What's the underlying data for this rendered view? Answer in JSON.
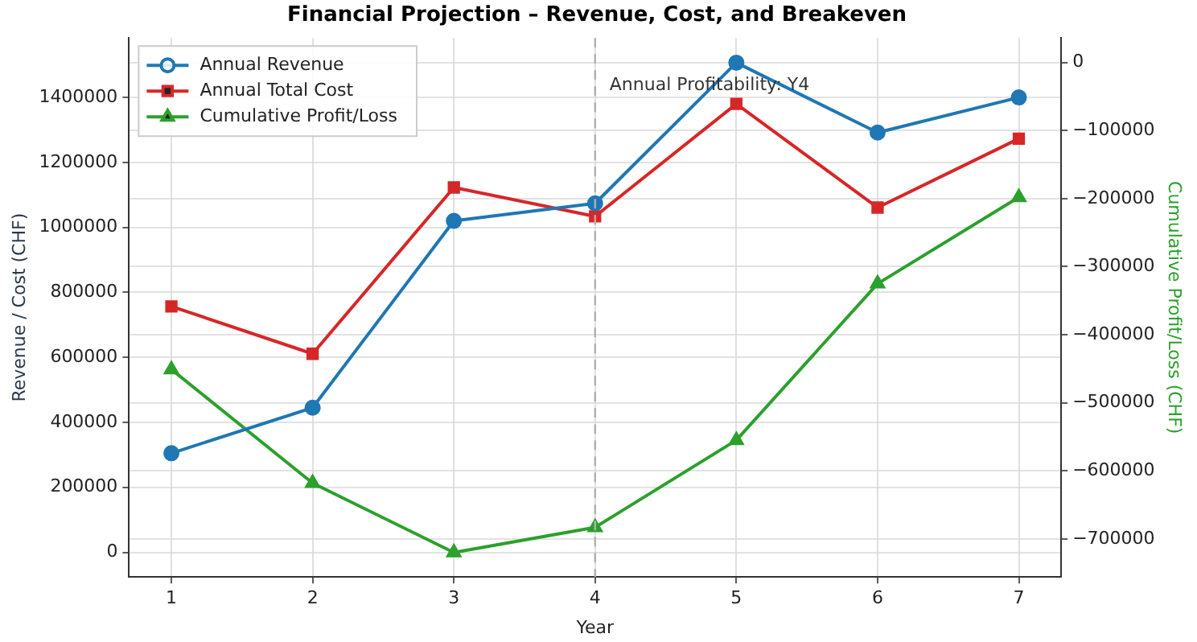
{
  "chart_data": {
    "type": "line",
    "title": "Financial Projection – Revenue, Cost, and Breakeven",
    "xlabel": "Year",
    "ylabel": "Revenue / Cost (CHF)",
    "y2label": "Cumulative Profit/Loss (CHF)",
    "x": [
      1,
      2,
      3,
      4,
      5,
      6,
      7
    ],
    "xlim": [
      0.7,
      7.3
    ],
    "xticks": [
      1,
      2,
      3,
      4,
      5,
      6,
      7
    ],
    "ylim": [
      -76000,
      1583000
    ],
    "yticks": [
      0,
      200000,
      400000,
      600000,
      800000,
      1000000,
      1200000,
      1400000
    ],
    "y2lim": [
      -756000,
      36000
    ],
    "y2ticks": [
      {
        "value": 0,
        "label": "0"
      },
      {
        "value": -100000,
        "label": "−100000"
      },
      {
        "value": -200000,
        "label": "−200000"
      },
      {
        "value": -300000,
        "label": "−300000"
      },
      {
        "value": -400000,
        "label": "−400000"
      },
      {
        "value": -500000,
        "label": "−500000"
      },
      {
        "value": -600000,
        "label": "−600000"
      },
      {
        "value": -700000,
        "label": "−700000"
      }
    ],
    "series": [
      {
        "name": "Annual Revenue",
        "color": "#1f77b4",
        "marker": "circle",
        "values": [
          305000,
          445000,
          1020000,
          1074000,
          1507000,
          1292000,
          1400000
        ]
      },
      {
        "name": "Annual Total Cost",
        "color": "#d62728",
        "marker": "square",
        "values": [
          757000,
          611000,
          1123000,
          1034000,
          1380000,
          1061000,
          1273000
        ]
      },
      {
        "name": "Cumulative Profit/Loss",
        "color": "#2ca02c",
        "marker": "triangle",
        "axis": "y2",
        "values": [
          -451000,
          -618000,
          -720000,
          -683000,
          -555000,
          -325000,
          -198000
        ]
      }
    ],
    "ref_lines": [
      {
        "axis": "x",
        "value": 4,
        "label": "Annual Profitability: Y4",
        "color": "#b0b0b0",
        "line_style": "dashed"
      }
    ],
    "grid": true,
    "legend": "top left",
    "line_style": "solid"
  }
}
